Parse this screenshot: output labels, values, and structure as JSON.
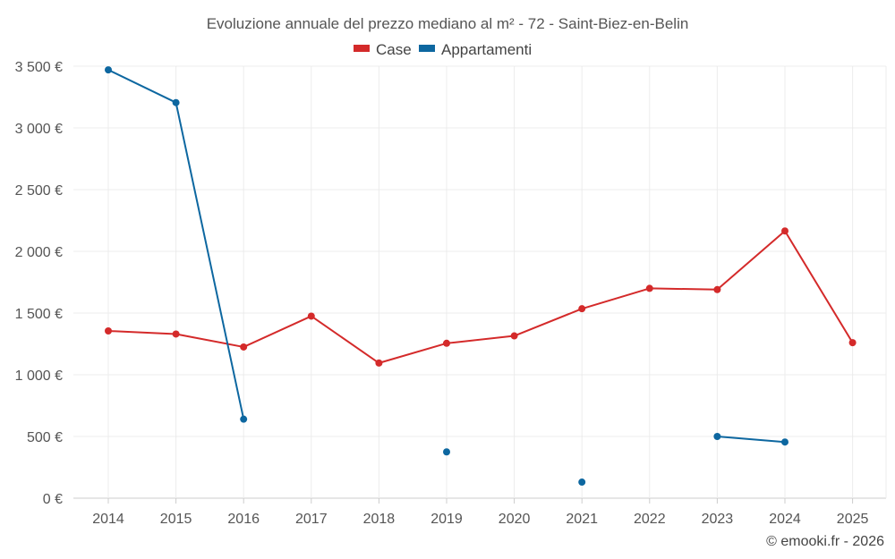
{
  "chart_data": {
    "type": "line",
    "title": "Evoluzione annuale del prezzo mediano al m² - 72 - Saint-Biez-en-Belin",
    "categories": [
      "2014",
      "2015",
      "2016",
      "2017",
      "2018",
      "2019",
      "2020",
      "2021",
      "2022",
      "2023",
      "2024",
      "2025"
    ],
    "ylim": [
      0,
      3500
    ],
    "yticks": [
      0,
      500,
      1000,
      1500,
      2000,
      2500,
      3000,
      3500
    ],
    "ytick_labels": [
      "0 €",
      "500 €",
      "1 000 €",
      "1 500 €",
      "2 000 €",
      "2 500 €",
      "3 000 €",
      "3 500 €"
    ],
    "grid": true,
    "legend_position": "top-center",
    "series": [
      {
        "name": "Case",
        "color": "#d42a2a",
        "values": [
          1355,
          1330,
          1225,
          1475,
          1095,
          1255,
          1315,
          1535,
          1700,
          1690,
          2165,
          1260
        ]
      },
      {
        "name": "Appartamenti",
        "color": "#0d67a0",
        "values": [
          3470,
          3205,
          640,
          null,
          null,
          375,
          null,
          130,
          null,
          500,
          455,
          null
        ]
      }
    ]
  },
  "credit": "© emooki.fr - 2026"
}
